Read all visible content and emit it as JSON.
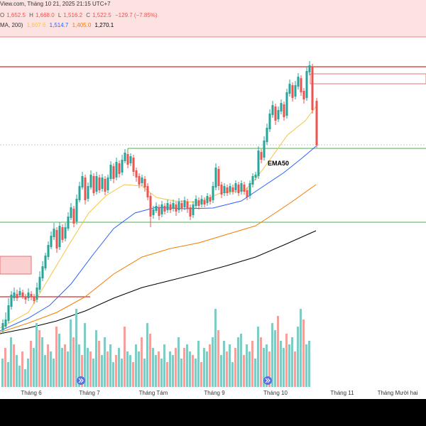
{
  "header": {
    "source_line": "View.com, Tháng 10 21, 2025 21:15 UTC+7",
    "ohlc": {
      "o_label": "O",
      "o_value": "1,652.5",
      "h_label": "H",
      "h_value": "1,668.0",
      "l_label": "L",
      "l_value": "1,516.2",
      "c_label": "C",
      "c_value": "1,522.5",
      "change": "−129.7 (−7.85%)"
    },
    "ema_line": {
      "label": "MA, 200)",
      "v1": "1,607.6",
      "v2": "1,514.7",
      "v3": "1,405.0",
      "v4": "1,270.1"
    }
  },
  "annotations": {
    "ema50_label": "EMA50"
  },
  "time_axis": {
    "labels": [
      "Tháng 6",
      "Tháng 7",
      "Tháng Tám",
      "Tháng 9",
      "Tháng 10",
      "Tháng 11",
      "Tháng Mười hai"
    ]
  },
  "colors": {
    "up": "#26a69a",
    "down": "#ef5350",
    "vol_up": "#80cbc4",
    "vol_down": "#f4a09c",
    "ema20": "#f6c445",
    "ema50": "#2962ff",
    "ema100": "#f57c00",
    "ema200": "#000000",
    "green_line": "#4caf50",
    "red_line": "#d32f2f",
    "header_band": "#fde2e2",
    "ohlc_down": "#ef5350"
  },
  "icons": {
    "event_marker": "double-chevron-right-icon"
  }
}
